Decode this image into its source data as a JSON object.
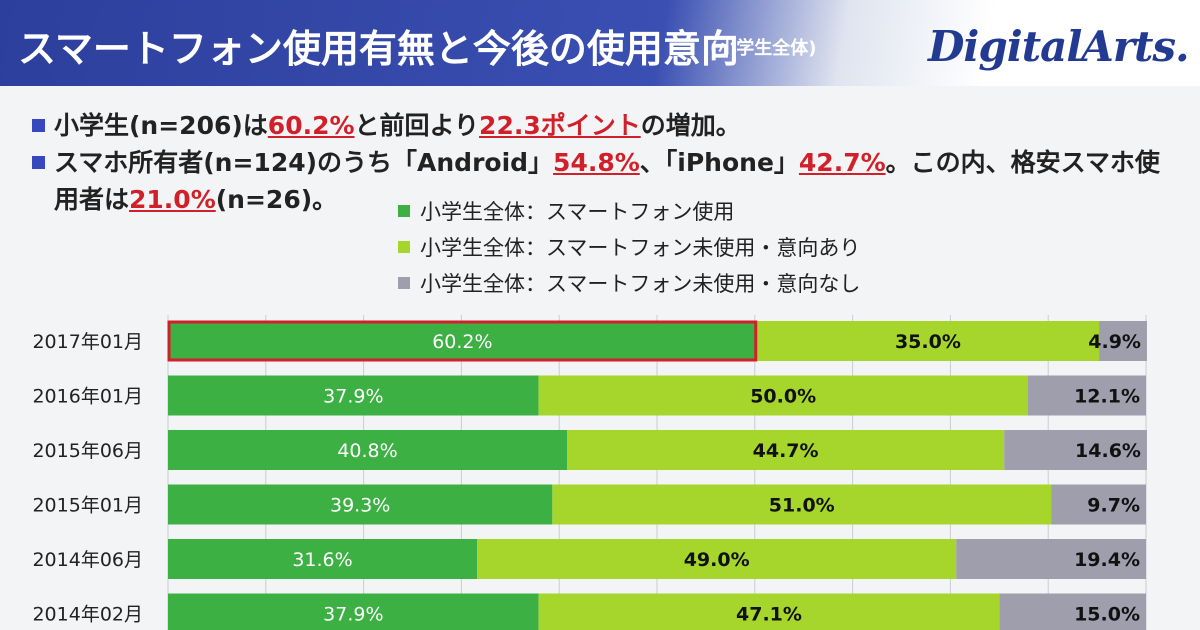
{
  "header": {
    "title": "スマートフォン使用有無と今後の使用意向",
    "subtitle": "(小学生全体)",
    "logo": "DigitalArts."
  },
  "bullets": {
    "b1": {
      "t1": "小学生(n=206)は",
      "h1": "60.2%",
      "t2": "と前回より",
      "h2": "22.3ポイント",
      "t3": "の増加。"
    },
    "b2": {
      "t1": "スマホ所有者(n=124)のうち「Android」",
      "h1": "54.8%",
      "t2": "、「iPhone」",
      "h2": "42.7%",
      "t3": "。この内、格安スマホ使",
      "t4": "用者は",
      "h3": "21.0%",
      "t5": "(n=26)。"
    }
  },
  "colors": {
    "used": "#3cb043",
    "intend": "#a6d62b",
    "no_intend": "#9e9ead",
    "highlight": "#d2202a"
  },
  "chart_data": {
    "type": "bar",
    "orientation": "horizontal",
    "stacked": true,
    "xlim": [
      0,
      100
    ],
    "categories": [
      "2017年01月",
      "2016年01月",
      "2015年06月",
      "2015年01月",
      "2014年06月",
      "2014年02月"
    ],
    "series": [
      {
        "name": "小学生全体：スマートフォン使用",
        "values": [
          60.2,
          37.9,
          40.8,
          39.3,
          31.6,
          37.9
        ]
      },
      {
        "name": "小学生全体：スマートフォン未使用・意向あり",
        "values": [
          35.0,
          50.0,
          44.7,
          51.0,
          49.0,
          47.1
        ]
      },
      {
        "name": "小学生全体：スマートフォン未使用・意向なし",
        "values": [
          4.9,
          12.1,
          14.6,
          9.7,
          19.4,
          15.0
        ]
      }
    ],
    "labels": [
      [
        "60.2%",
        "35.0%",
        "4.9%"
      ],
      [
        "37.9%",
        "50.0%",
        "12.1%"
      ],
      [
        "40.8%",
        "44.7%",
        "14.6%"
      ],
      [
        "39.3%",
        "51.0%",
        "9.7%"
      ],
      [
        "31.6%",
        "49.0%",
        "19.4%"
      ],
      [
        "37.9%",
        "47.1%",
        "15.0%"
      ]
    ],
    "highlighted_bar": 0,
    "grid": true
  }
}
